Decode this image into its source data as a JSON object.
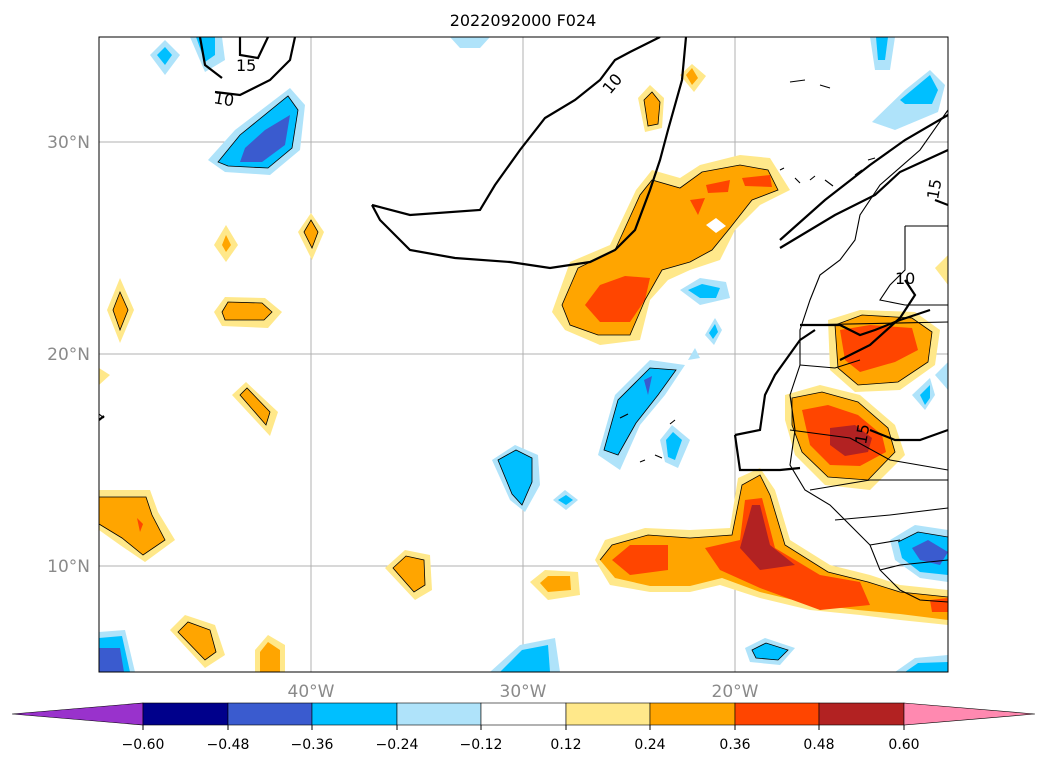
{
  "title": "2022092000 F024",
  "map": {
    "lat_labels": [
      "30°N",
      "20°N",
      "10°N"
    ],
    "lon_labels": [
      "40°W",
      "30°W",
      "20°W"
    ],
    "contour_labels": [
      "15",
      "10",
      "10",
      "15",
      "10",
      "15"
    ]
  },
  "colorbar": {
    "ticks": [
      "−0.60",
      "−0.48",
      "−0.36",
      "−0.24",
      "−0.12",
      "0.12",
      "0.24",
      "0.36",
      "0.48",
      "0.60"
    ],
    "colors": {
      "under": "#9932cc",
      "c1": "#00008b",
      "c2": "#3a5bcf",
      "c3": "#00bfff",
      "c4": "#afe3fa",
      "c5": "#ffffff",
      "c6": "#ffe88a",
      "c7": "#ffa500",
      "c8": "#ff4500",
      "c9": "#b22222",
      "over": "#ff89b0"
    }
  }
}
